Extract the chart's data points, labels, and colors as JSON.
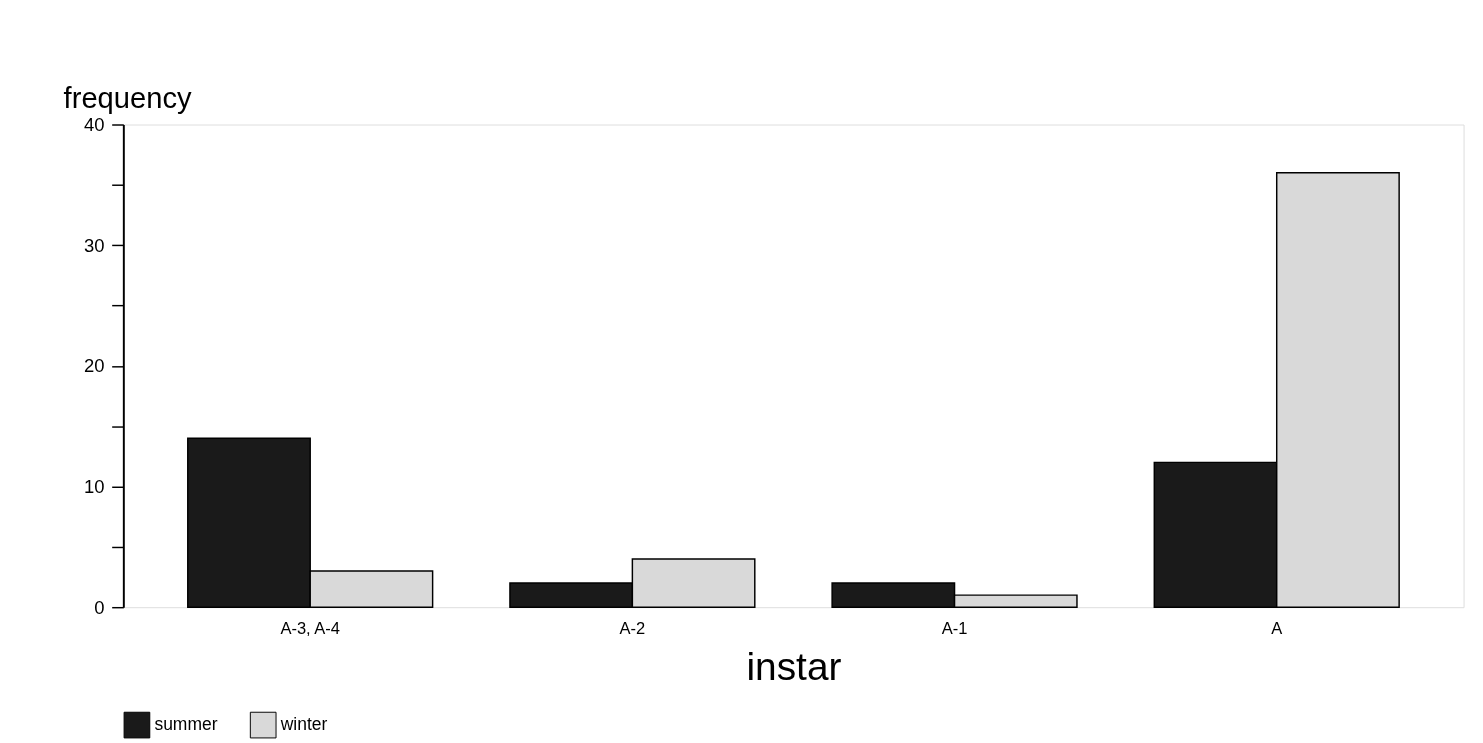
{
  "chart_data": {
    "type": "bar",
    "xlabel": "instar",
    "ylabel": "frequency",
    "categories": [
      "A-3, A-4",
      "A-2",
      "A-1",
      "A"
    ],
    "series": [
      {
        "name": "summer",
        "color": "#1a1a1a",
        "values": [
          14,
          2,
          2,
          12
        ]
      },
      {
        "name": "winter",
        "color": "#d9d9d9",
        "values": [
          3,
          4,
          1,
          36
        ]
      }
    ],
    "ylim": [
      0,
      40
    ],
    "yticks": [
      0,
      {
        "value": 5,
        "label": null
      },
      10,
      {
        "value": 15,
        "label": null
      },
      20,
      {
        "value": 25,
        "label": null
      },
      30,
      {
        "value": 35,
        "label": null
      },
      40
    ],
    "grid": false,
    "legend": "bottom"
  }
}
